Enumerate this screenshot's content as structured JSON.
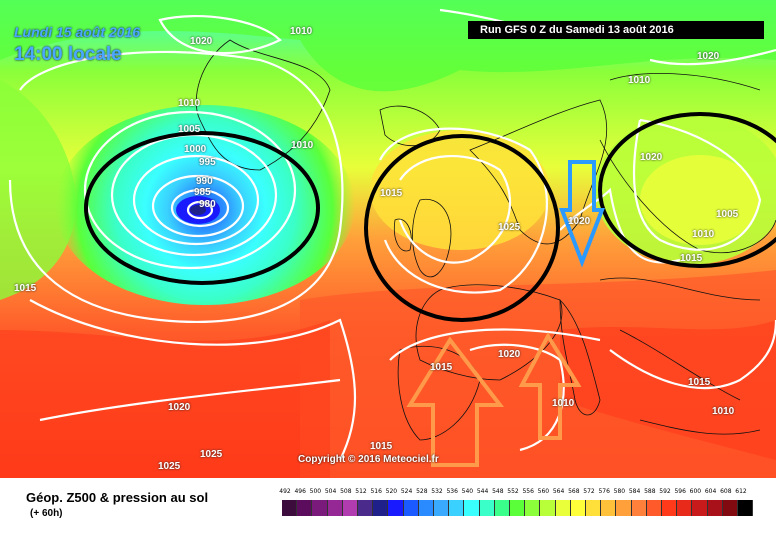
{
  "header": {
    "date": "Lundi 15 août 2016",
    "time": "14:00 locale",
    "run": "Run GFS 0 Z du Samedi 13 août 2016"
  },
  "footer": {
    "copyright": "Copyright © 2016 Meteociel.fr",
    "title": "Géop. Z500 & pression au sol",
    "lead": "(+ 60h)"
  },
  "isobar_labels": [
    "1020",
    "1010",
    "1010",
    "1010",
    "1005",
    "1000",
    "995",
    "990",
    "985",
    "980",
    "1015",
    "1015",
    "1025",
    "1020",
    "1020",
    "1010",
    "1005",
    "1010",
    "1015",
    "1020",
    "1015",
    "1010",
    "1015",
    "1010",
    "1020",
    "1025",
    "1025",
    "1015",
    "1020"
  ],
  "scale": {
    "ticks": [
      "492",
      "496",
      "500",
      "504",
      "508",
      "512",
      "516",
      "520",
      "524",
      "528",
      "532",
      "536",
      "540",
      "544",
      "548",
      "552",
      "556",
      "560",
      "564",
      "568",
      "572",
      "576",
      "580",
      "584",
      "588",
      "592",
      "596",
      "600",
      "604",
      "608",
      "612"
    ],
    "colors": [
      "#3c0c3c",
      "#5c0c5c",
      "#7a1a7a",
      "#962896",
      "#b03cb0",
      "#4a2a8a",
      "#20208a",
      "#1a1aff",
      "#1a5aff",
      "#2a8aff",
      "#3aaaff",
      "#3ad0ff",
      "#3affff",
      "#3affc8",
      "#3aff8a",
      "#5aff3a",
      "#8aff3a",
      "#b8ff3a",
      "#e8ff3a",
      "#ffff3a",
      "#ffe03a",
      "#ffc03a",
      "#ffa03a",
      "#ff803a",
      "#ff5a2a",
      "#ff3a1a",
      "#e82a1a",
      "#c81a1a",
      "#a8101a",
      "#800a10",
      "#000000"
    ]
  },
  "colors": {
    "run_box_bg": "#000000",
    "title_text": "#4aa8ff"
  },
  "annotations": {
    "circles": [
      "low-over-iceland",
      "anticyclone-uk",
      "depression-scandinavia"
    ],
    "arrows": [
      "warm-air-iberia",
      "warm-air-mediterranean",
      "cold-air-germany"
    ]
  }
}
